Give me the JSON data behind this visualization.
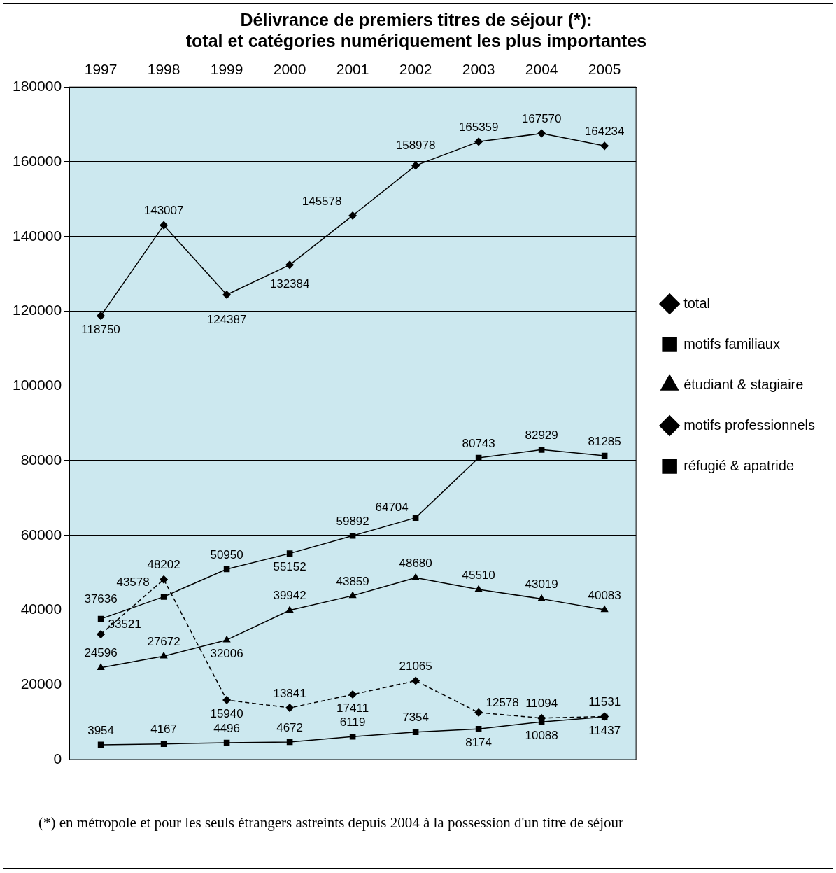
{
  "chart_data": {
    "type": "line",
    "title": "Délivrance de premiers titres de séjour (*):\ntotal et catégories numériquement les plus importantes",
    "categories": [
      "1997",
      "1998",
      "1999",
      "2000",
      "2001",
      "2002",
      "2003",
      "2004",
      "2005"
    ],
    "series": [
      {
        "name": "total",
        "color": "#000000",
        "marker": "diamond",
        "values": [
          118750,
          143007,
          124387,
          132384,
          145578,
          158978,
          165359,
          167570,
          164234
        ]
      },
      {
        "name": "motifs familiaux",
        "color": "#000000",
        "marker": "square",
        "values": [
          37636,
          43578,
          50950,
          55152,
          59892,
          64704,
          80743,
          82929,
          81285
        ]
      },
      {
        "name": "étudiant & stagiaire",
        "color": "#000000",
        "marker": "triangle",
        "values": [
          24596,
          27672,
          32006,
          39942,
          43859,
          48680,
          45510,
          43019,
          40083
        ]
      },
      {
        "name": "motifs professionnels",
        "color": "#000000",
        "marker": "diamond",
        "line_style": "dashed",
        "values": [
          33521,
          48202,
          15940,
          13841,
          17411,
          21065,
          12578,
          11094,
          11531
        ]
      },
      {
        "name": "réfugié & apatride",
        "color": "#000000",
        "marker": "square",
        "values": [
          3954,
          4167,
          4496,
          4672,
          6119,
          7354,
          8174,
          10088,
          11437
        ]
      }
    ],
    "ylim": [
      0,
      180000
    ],
    "yticks": [
      0,
      20000,
      40000,
      60000,
      80000,
      100000,
      120000,
      140000,
      160000,
      180000
    ],
    "grid": "y",
    "legend": "right",
    "data_labels": true,
    "annotations": [
      "(*) en métropole et pour les seuls étrangers astreints depuis 2004 à la possession d'un titre de séjour"
    ]
  }
}
